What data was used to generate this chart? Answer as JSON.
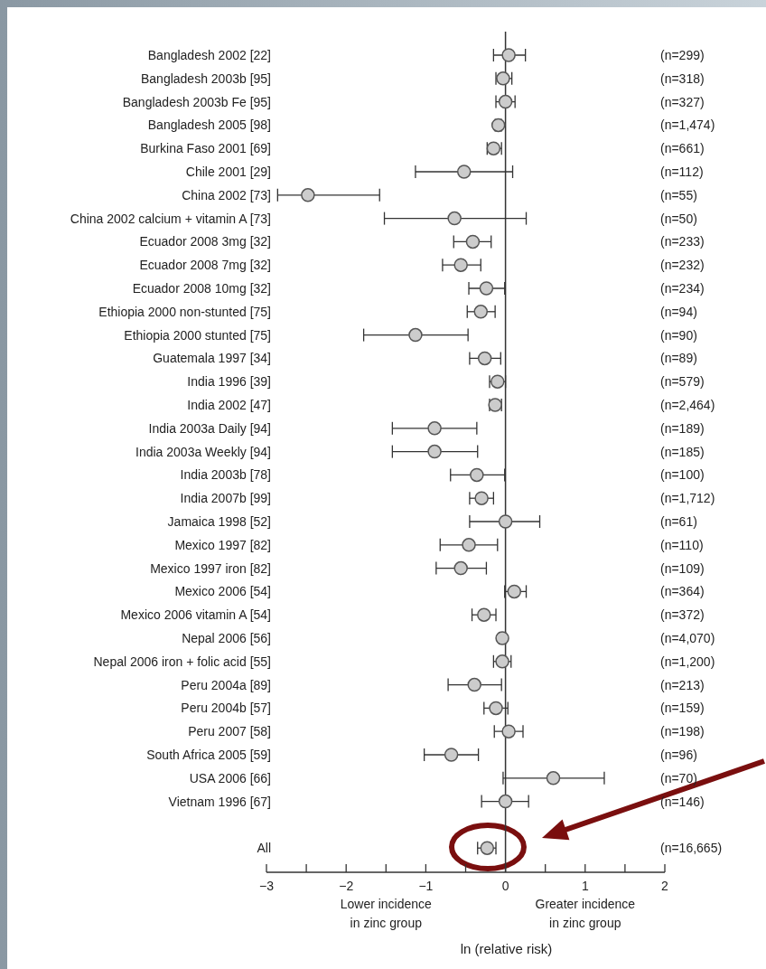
{
  "chart_data": {
    "type": "scatter",
    "orientation": "horizontal",
    "categories": [
      "Bangladesh 2002  [22]",
      "Bangladesh 2003b  [95]",
      "Bangladesh 2003b Fe  [95]",
      "Bangladesh 2005  [98]",
      "Burkina Faso 2001  [69]",
      "Chile 2001  [29]",
      "China 2002  [73]",
      "China 2002 calcium + vitamin A  [73]",
      "Ecuador 2008 3mg  [32]",
      "Ecuador 2008 7mg  [32]",
      "Ecuador 2008 10mg  [32]",
      "Ethiopia 2000 non-stunted  [75]",
      "Ethiopia 2000 stunted  [75]",
      "Guatemala 1997  [34]",
      "India 1996  [39]",
      "India 2002  [47]",
      "India 2003a Daily  [94]",
      "India 2003a Weekly  [94]",
      "India 2003b  [78]",
      "India 2007b  [99]",
      "Jamaica 1998  [52]",
      "Mexico 1997  [82]",
      "Mexico 1997 iron  [82]",
      "Mexico 2006  [54]",
      "Mexico 2006 vitamin A  [54]",
      "Nepal 2006  [56]",
      "Nepal 2006 iron + folic acid  [55]",
      "Peru 2004a  [89]",
      "Peru 2004b  [57]",
      "Peru 2007  [58]",
      "South Africa 2005  [59]",
      "USA 2006  [66]",
      "Vietnam 1996  [67]",
      null,
      "All"
    ],
    "y2_categories": [
      "(n=299)",
      "(n=318)",
      "(n=327)",
      "(n=1,474)",
      "(n=661)",
      "(n=112)",
      "(n=55)",
      "(n=50)",
      "(n=233)",
      "(n=232)",
      "(n=234)",
      "(n=94)",
      "(n=90)",
      "(n=89)",
      "(n=579)",
      "(n=2,464)",
      "(n=189)",
      "(n=185)",
      "(n=100)",
      "(n=1,712)",
      "(n=61)",
      "(n=110)",
      "(n=109)",
      "(n=364)",
      "(n=372)",
      "(n=4,070)",
      "(n=1,200)",
      "(n=213)",
      "(n=159)",
      "(n=198)",
      "(n=96)",
      "(n=70)",
      "(n=146)",
      null,
      "(n=16,665)"
    ],
    "series": [
      {
        "color": "#cccccc",
        "values": [
          0.04,
          -0.03,
          0.0,
          -0.09,
          -0.15,
          -0.52,
          -2.48,
          -0.64,
          -0.41,
          -0.56,
          -0.24,
          -0.31,
          -1.13,
          -0.26,
          -0.1,
          -0.13,
          -0.89,
          -0.89,
          -0.36,
          -0.3,
          0.0,
          -0.46,
          -0.56,
          0.11,
          -0.27,
          -0.04,
          -0.04,
          -0.39,
          -0.12,
          0.04,
          -0.68,
          0.6,
          0.0,
          null,
          -0.23
        ],
        "errors": [
          [
            -0.15,
            0.25
          ],
          [
            -0.12,
            0.08
          ],
          [
            -0.12,
            0.12
          ],
          [
            -0.13,
            -0.05
          ],
          [
            -0.23,
            -0.05
          ],
          [
            -1.13,
            0.09
          ],
          [
            -2.86,
            -1.58
          ],
          [
            -1.52,
            0.26
          ],
          [
            -0.65,
            -0.18
          ],
          [
            -0.79,
            -0.31
          ],
          [
            -0.46,
            -0.01
          ],
          [
            -0.48,
            -0.13
          ],
          [
            -1.78,
            -0.47
          ],
          [
            -0.45,
            -0.06
          ],
          [
            -0.2,
            0.0
          ],
          [
            -0.2,
            -0.05
          ],
          [
            -1.42,
            -0.36
          ],
          [
            -1.42,
            -0.35
          ],
          [
            -0.69,
            -0.01
          ],
          [
            -0.45,
            -0.15
          ],
          [
            -0.45,
            0.43
          ],
          [
            -0.82,
            -0.1
          ],
          [
            -0.87,
            -0.24
          ],
          [
            -0.01,
            0.26
          ],
          [
            -0.42,
            -0.12
          ],
          [
            -0.08,
            0.0
          ],
          [
            -0.15,
            0.07
          ],
          [
            -0.72,
            -0.05
          ],
          [
            -0.27,
            0.03
          ],
          [
            -0.14,
            0.22
          ],
          [
            -1.02,
            -0.34
          ],
          [
            -0.03,
            1.24
          ],
          [
            -0.3,
            0.29
          ],
          null,
          [
            -0.35,
            -0.12
          ]
        ]
      }
    ],
    "marker": "circle",
    "xlabel": "ln (relative risk)",
    "xlim": [
      -3,
      2
    ],
    "xticks": [
      {
        "value": -3,
        "label": "−3"
      },
      {
        "value": -2.5,
        "label": null
      },
      {
        "value": -2,
        "label": "−2"
      },
      {
        "value": -1.5,
        "label": null
      },
      {
        "value": -1,
        "label": "−1"
      },
      {
        "value": -0.5,
        "label": null
      },
      0,
      {
        "value": 0.5,
        "label": null
      },
      1,
      {
        "value": 1.5,
        "label": null
      },
      2
    ],
    "ref_lines": [
      {
        "axis": "x",
        "value": 0,
        "color": "#333333"
      }
    ],
    "annotations": [
      "Lower incidence\nin zinc group",
      "Greater incidence\nin zinc group"
    ]
  }
}
